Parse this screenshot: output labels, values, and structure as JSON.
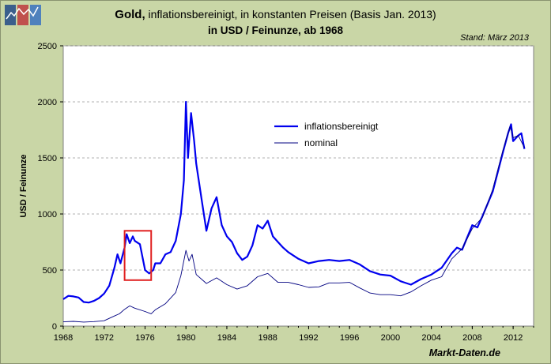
{
  "header": {
    "title_bold": "Gold,",
    "title_rest": "inflationsbereinigt, in konstanten Preisen (Basis Jan. 2013)",
    "subtitle": "in USD / Feinunze, ab 1968",
    "stand": "Stand: März 2013",
    "brand": "Markt-Daten.de",
    "logo": "chart-logo-icon"
  },
  "colors": {
    "background": "#c9d6a6",
    "plot": "#ffffff",
    "series_real": "#0000ee",
    "series_nominal": "#000080",
    "highlight": "#e02020"
  },
  "chart_data": {
    "type": "line",
    "title": "Gold, inflationsbereinigt, in konstanten Preisen (Basis Jan. 2013)",
    "subtitle": "in USD / Feinunze, ab 1968",
    "xlabel": "",
    "ylabel": "USD / Feinunze",
    "xlim": [
      1968,
      2014
    ],
    "ylim": [
      0,
      2500
    ],
    "xticks": [
      "1968",
      "1972",
      "1976",
      "1980",
      "1984",
      "1988",
      "1992",
      "1996",
      "2000",
      "2004",
      "2008",
      "2012"
    ],
    "yticks": [
      "0",
      "500",
      "1000",
      "1500",
      "2000",
      "2500"
    ],
    "grid": true,
    "legend_position": "upper-middle",
    "series": [
      {
        "name": "inflationsbereinigt",
        "x": [
          1968,
          1968.5,
          1969,
          1969.5,
          1970,
          1970.5,
          1971,
          1971.5,
          1972,
          1972.5,
          1973,
          1973.3,
          1973.6,
          1974,
          1974.2,
          1974.5,
          1974.8,
          1975,
          1975.5,
          1976,
          1976.4,
          1976.8,
          1977,
          1977.5,
          1978,
          1978.5,
          1979,
          1979.5,
          1979.8,
          1980.0,
          1980.2,
          1980.5,
          1980.8,
          1981,
          1981.5,
          1982,
          1982.5,
          1983,
          1983.5,
          1984,
          1984.5,
          1985,
          1985.5,
          1986,
          1986.5,
          1987,
          1987.5,
          1988,
          1988.5,
          1989,
          1989.5,
          1990,
          1991,
          1992,
          1993,
          1994,
          1995,
          1996,
          1997,
          1998,
          1999,
          2000,
          2001,
          2002,
          2003,
          2004,
          2005,
          2006,
          2006.5,
          2007,
          2008,
          2008.5,
          2009,
          2010,
          2011,
          2011.5,
          2011.8,
          2012,
          2012.5,
          2012.8,
          2013.1
        ],
        "values": [
          240,
          270,
          265,
          255,
          215,
          210,
          225,
          250,
          290,
          360,
          520,
          640,
          560,
          700,
          820,
          740,
          800,
          760,
          730,
          500,
          470,
          500,
          560,
          560,
          640,
          660,
          760,
          1000,
          1300,
          2000,
          1500,
          1900,
          1650,
          1450,
          1150,
          850,
          1050,
          1150,
          900,
          800,
          750,
          650,
          590,
          620,
          720,
          900,
          870,
          940,
          800,
          750,
          700,
          660,
          600,
          560,
          580,
          590,
          580,
          590,
          550,
          490,
          460,
          450,
          400,
          370,
          420,
          460,
          520,
          650,
          700,
          680,
          900,
          880,
          980,
          1200,
          1550,
          1720,
          1800,
          1650,
          1700,
          1720,
          1580
        ]
      },
      {
        "name": "nominal",
        "x": [
          1968,
          1969,
          1970,
          1971,
          1972,
          1973,
          1973.5,
          1974,
          1974.5,
          1975,
          1976,
          1976.6,
          1977,
          1978,
          1979,
          1979.5,
          1980,
          1980.3,
          1980.6,
          1981,
          1982,
          1983,
          1984,
          1985,
          1986,
          1987,
          1988,
          1989,
          1990,
          1991,
          1992,
          1993,
          1994,
          1995,
          1996,
          1997,
          1998,
          1999,
          2000,
          2001,
          2002,
          2003,
          2004,
          2005,
          2006,
          2007,
          2008,
          2009,
          2010,
          2011,
          2011.7,
          2012,
          2012.5,
          2013.1
        ],
        "values": [
          38,
          42,
          36,
          40,
          48,
          90,
          110,
          150,
          180,
          160,
          130,
          110,
          145,
          200,
          300,
          450,
          675,
          580,
          640,
          460,
          380,
          430,
          370,
          330,
          360,
          440,
          470,
          390,
          390,
          370,
          345,
          350,
          385,
          385,
          390,
          340,
          295,
          280,
          280,
          270,
          305,
          360,
          410,
          440,
          600,
          690,
          870,
          970,
          1220,
          1570,
          1780,
          1680,
          1700,
          1590
        ]
      }
    ],
    "annotation": {
      "type": "rectangle",
      "x": [
        1974.0,
        1976.6
      ],
      "y": [
        410,
        850
      ]
    }
  }
}
